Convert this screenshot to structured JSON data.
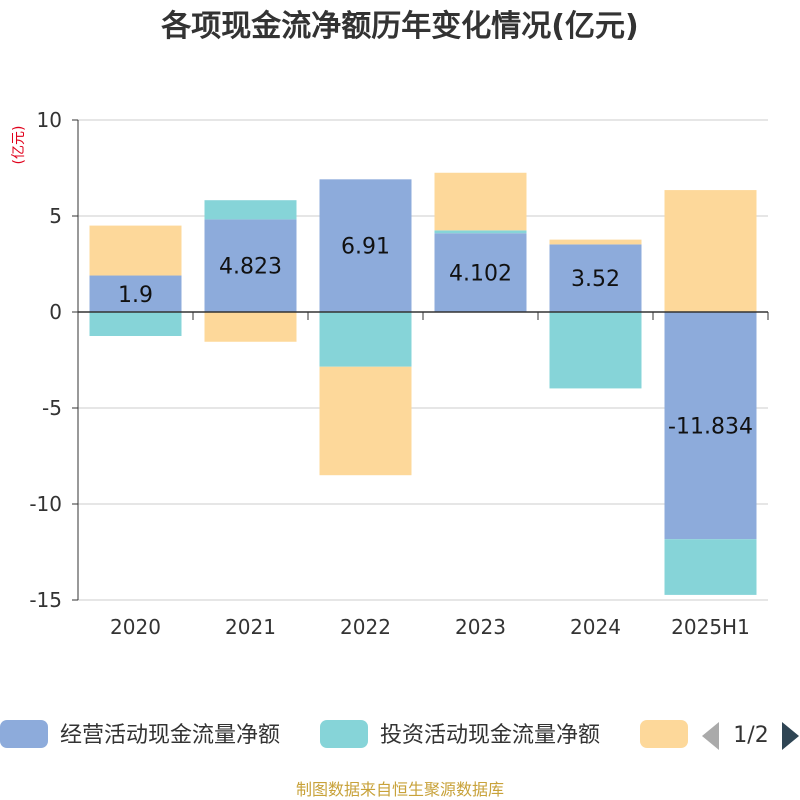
{
  "title": "各项现金流净额历年变化情况(亿元)",
  "source": "制图数据来自恒生聚源数据库",
  "chart_data": {
    "type": "bar",
    "stacked": true,
    "title": "各项现金流净额历年变化情况(亿元)",
    "ylabel": "(亿元)",
    "ylim": [
      -15,
      10
    ],
    "yticks": [
      10,
      5,
      0,
      -5,
      -10,
      -15
    ],
    "grid": true,
    "categories": [
      "2020",
      "2021",
      "2022",
      "2023",
      "2024",
      "2025H1"
    ],
    "series": [
      {
        "name": "经营活动现金流量净额",
        "color": "#8dabdb",
        "values": [
          1.9,
          4.823,
          6.91,
          4.102,
          3.52,
          -11.834
        ],
        "labels": [
          "1.9",
          "4.823",
          "6.91",
          "4.102",
          "3.52",
          "-11.834"
        ]
      },
      {
        "name": "投资活动现金流量净额",
        "color": "#86d4d8",
        "values": [
          -1.25,
          1.0,
          -2.85,
          0.15,
          -3.98,
          -2.9
        ]
      },
      {
        "name": "",
        "color": "#fdd89a",
        "values": [
          2.6,
          -1.55,
          -5.65,
          3.0,
          0.25,
          6.35
        ]
      }
    ],
    "legend": {
      "position": "bottom",
      "page": "1/2"
    }
  }
}
